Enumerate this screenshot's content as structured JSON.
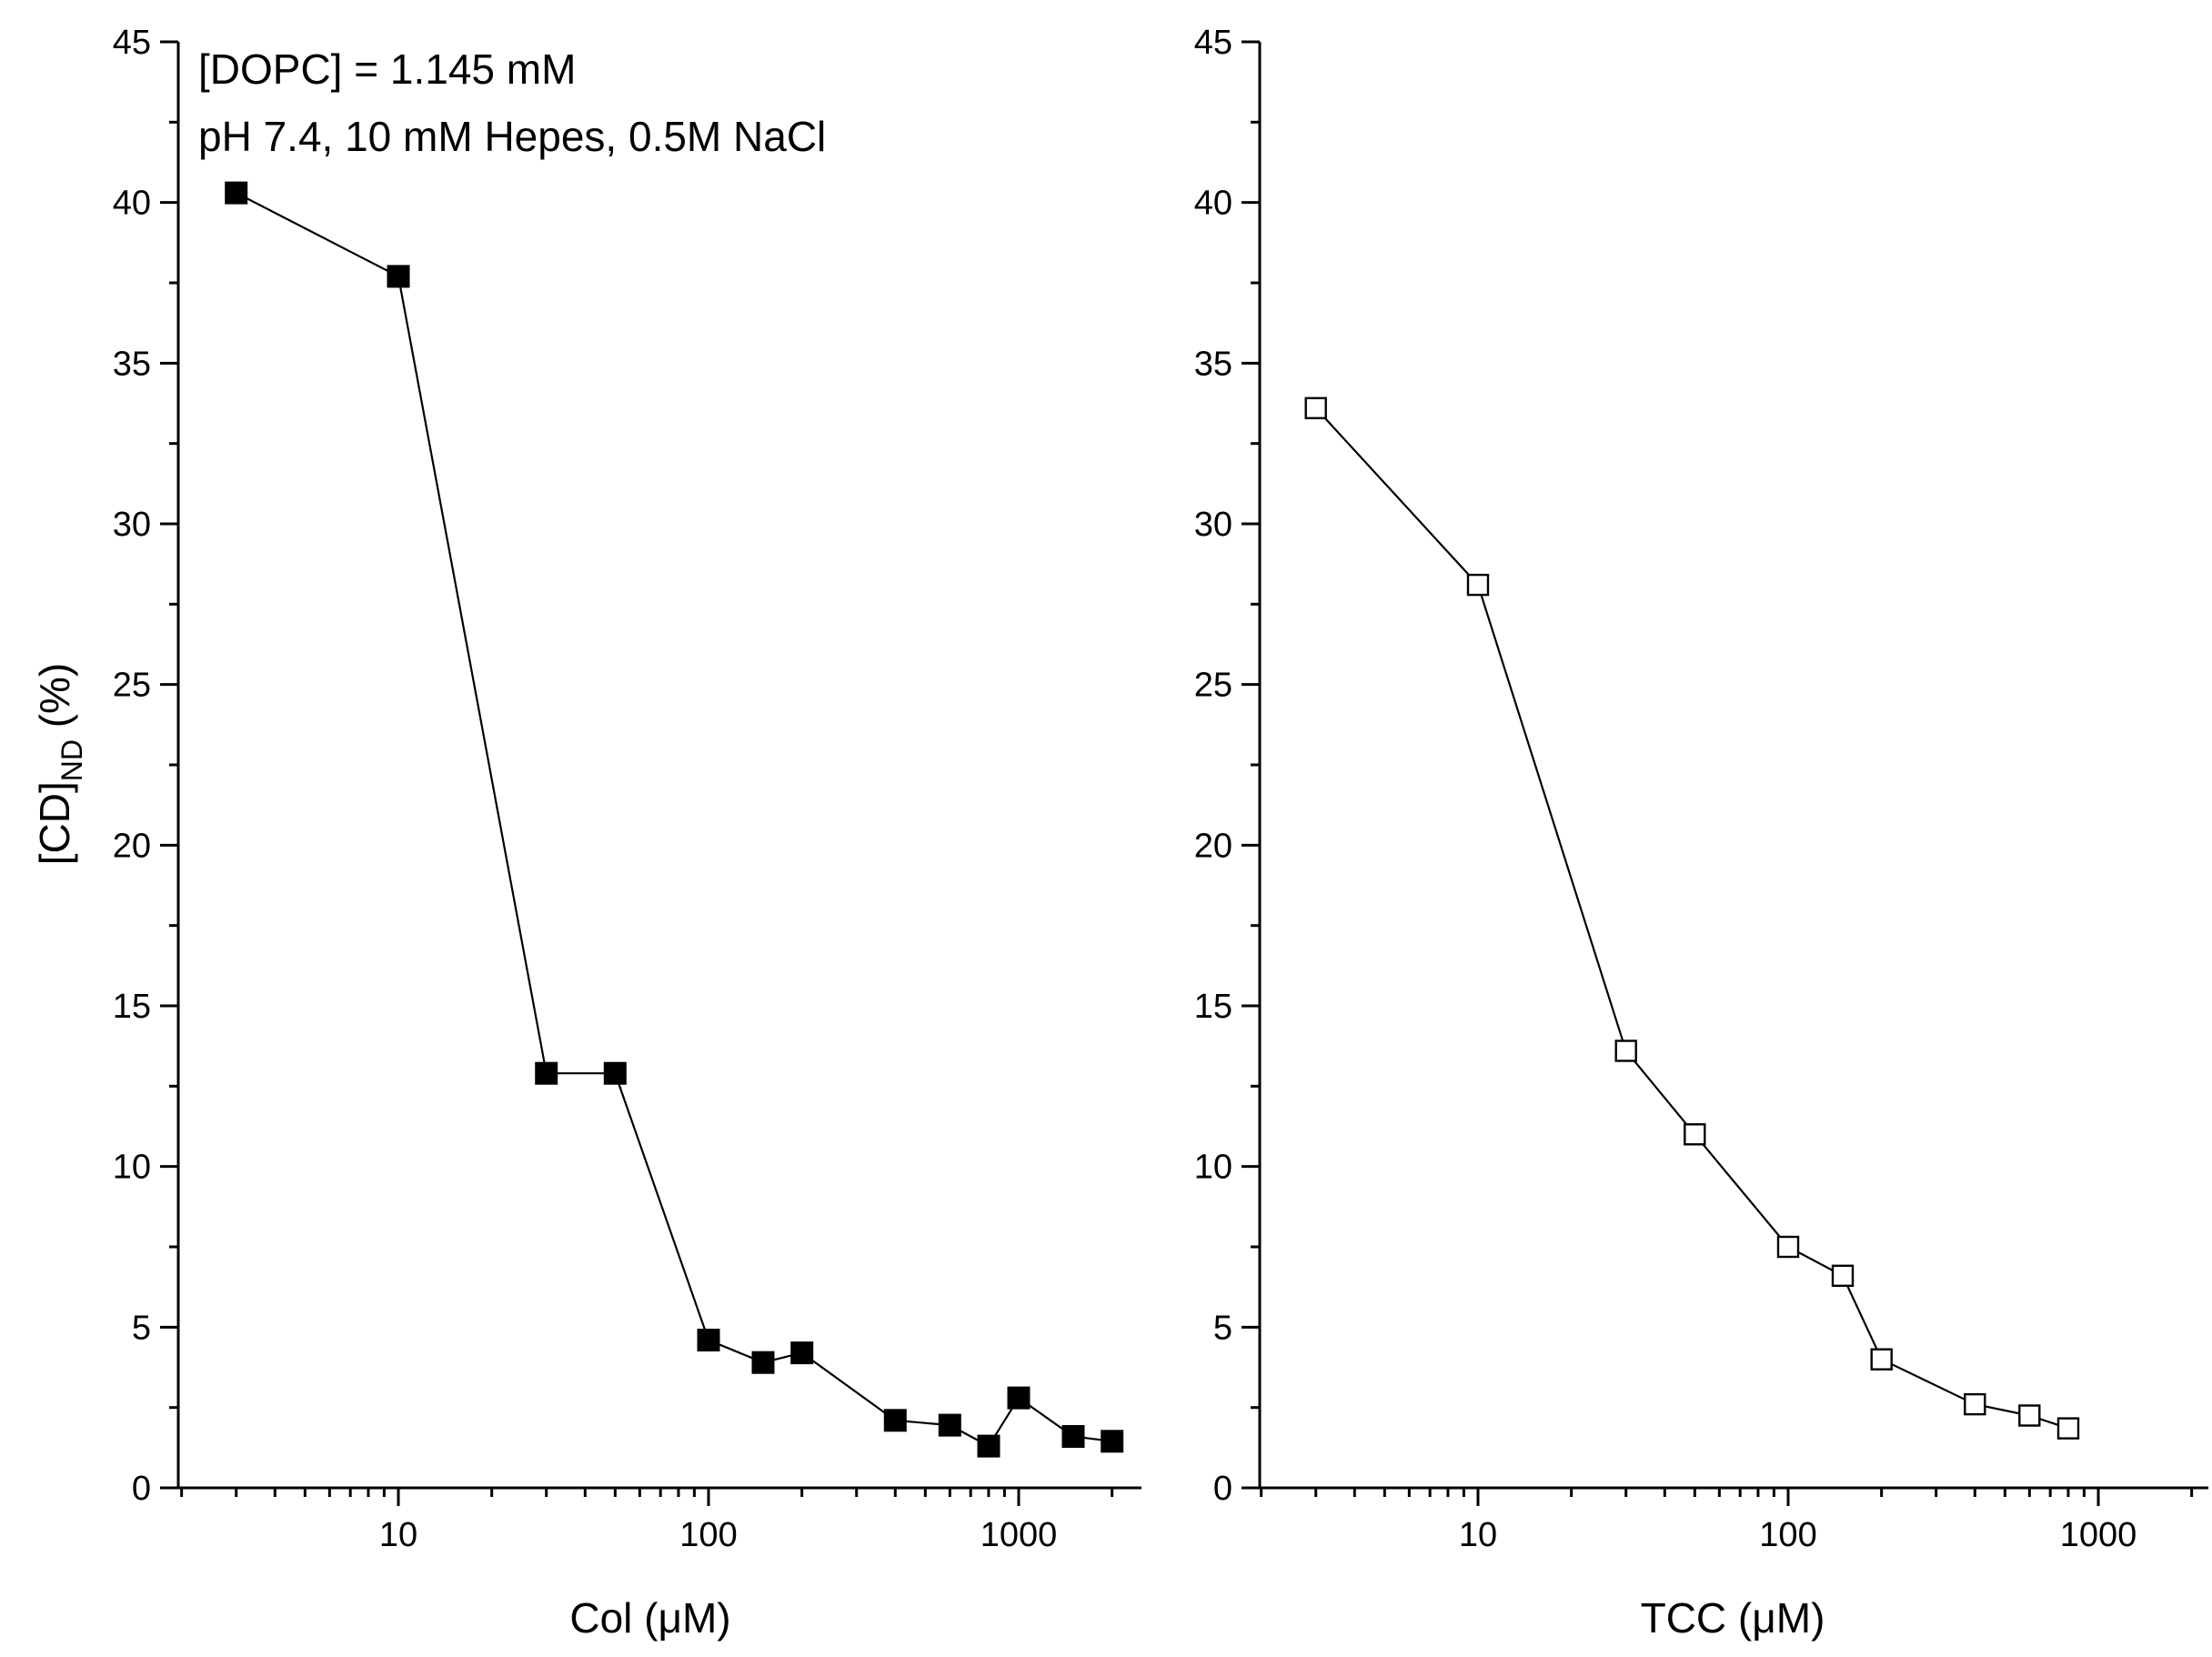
{
  "figure": {
    "background": "#ffffff",
    "ink": "#000000"
  },
  "chart_data": [
    {
      "type": "line",
      "id": "left",
      "title": "",
      "xlabel": "Col (μM)",
      "ylabel_main": "[CD]",
      "ylabel_sub": "ND",
      "ylabel_unit": " (%)",
      "xscale": "log",
      "xlim": [
        2,
        2500
      ],
      "ylim": [
        0,
        45
      ],
      "yticks": [
        0,
        5,
        10,
        15,
        20,
        25,
        30,
        35,
        40,
        45
      ],
      "xticks_major": [
        10,
        100,
        1000
      ],
      "xtick_labels": [
        "10",
        "100",
        "1000"
      ],
      "grid": false,
      "annotations": [
        "[DOPC] = 1.145 mM",
        "pH 7.4, 10 mM Hepes, 0.5M NaCl"
      ],
      "marker": "filled-square",
      "series": [
        {
          "name": "Col",
          "x": [
            3,
            10,
            30,
            50,
            100,
            150,
            200,
            400,
            600,
            800,
            1000,
            1500,
            2000
          ],
          "y": [
            40.3,
            37.7,
            12.9,
            12.9,
            4.6,
            3.9,
            4.2,
            2.1,
            1.95,
            1.3,
            2.8,
            1.6,
            1.45
          ]
        }
      ]
    },
    {
      "type": "line",
      "id": "right",
      "title": "",
      "xlabel": "TCC (μM)",
      "xscale": "log",
      "xlim": [
        2,
        2500
      ],
      "ylim": [
        0,
        45
      ],
      "yticks": [
        0,
        5,
        10,
        15,
        20,
        25,
        30,
        35,
        40,
        45
      ],
      "xticks_major": [
        10,
        100,
        1000
      ],
      "xtick_labels": [
        "10",
        "100",
        "1000"
      ],
      "grid": false,
      "marker": "open-square",
      "series": [
        {
          "name": "TCC",
          "x": [
            3,
            10,
            30,
            50,
            100,
            150,
            200,
            400,
            600,
            800
          ],
          "y": [
            33.6,
            28.1,
            13.6,
            11.0,
            7.5,
            6.6,
            4.0,
            2.6,
            2.25,
            1.85
          ]
        }
      ]
    }
  ]
}
